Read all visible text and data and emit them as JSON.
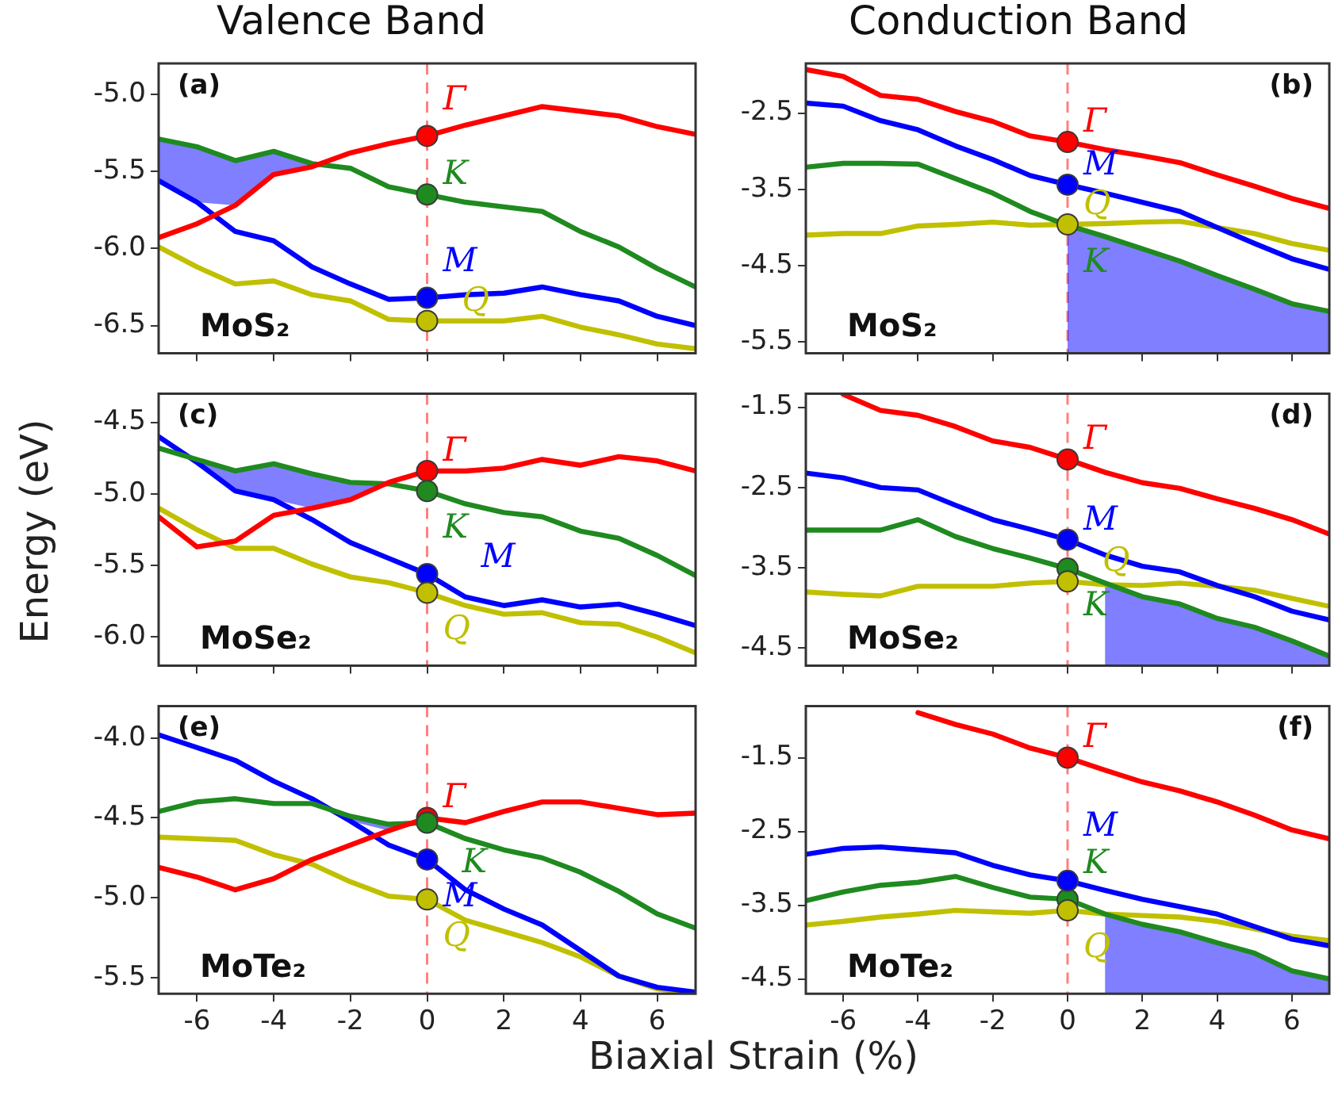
{
  "chart_data": [
    {
      "type": "line",
      "title": "Valence Band",
      "x": [
        -7,
        -6,
        -5,
        -4,
        -3,
        -2,
        -1,
        0,
        1,
        2,
        3,
        4,
        5,
        6,
        7
      ],
      "xlim": [
        -7,
        7
      ],
      "xticks": [
        -6,
        -4,
        -2,
        0,
        2,
        4,
        6
      ],
      "ylim": [
        -6.68,
        -4.8
      ],
      "yticks": [
        {
          "value": -5,
          "label": "-5.0"
        },
        -5.5,
        {
          "value": -6,
          "label": "-6.0"
        },
        -6.5
      ],
      "grid": false,
      "tick_labels": "y",
      "annotations": [
        "(a)",
        "MoS₂"
      ],
      "ref_lines": [
        {
          "axis": "x",
          "value": 0,
          "color": "#ff8080",
          "line_style": "dashed"
        }
      ],
      "series": [
        {
          "name": "Γ",
          "color": "#ff0000",
          "values": [
            -5.93,
            -5.84,
            -5.72,
            -5.52,
            -5.47,
            -5.38,
            -5.32,
            -5.27,
            -5.2,
            -5.14,
            -5.08,
            -5.11,
            -5.14,
            -5.21,
            -5.26
          ]
        },
        {
          "name": "K",
          "color": "#1f8a1f",
          "values": [
            -5.29,
            -5.34,
            -5.43,
            -5.37,
            -5.45,
            -5.48,
            -5.6,
            -5.65,
            -5.7,
            -5.73,
            -5.76,
            -5.89,
            -5.99,
            -6.13,
            -6.25
          ]
        },
        {
          "name": "M",
          "color": "#0000ff",
          "values": [
            -5.56,
            -5.7,
            -5.89,
            -5.95,
            -6.12,
            -6.23,
            -6.33,
            -6.32,
            -6.3,
            -6.29,
            -6.25,
            -6.3,
            -6.34,
            -6.44,
            -6.5
          ],
          "upper": [
            -5.29,
            -5.34,
            -5.43,
            -5.37,
            -5.45,
            null,
            null,
            null,
            null,
            null,
            null,
            null,
            null,
            null,
            null
          ],
          "lower": [
            -5.56,
            -5.7,
            -5.72,
            -5.52,
            -5.47,
            null,
            null,
            null,
            null,
            null,
            null,
            null,
            null,
            null,
            null
          ]
        },
        {
          "name": "Q",
          "color": "#c0c000",
          "values": [
            -5.99,
            -6.12,
            -6.23,
            -6.21,
            -6.3,
            -6.34,
            -6.46,
            -6.47,
            -6.47,
            -6.47,
            -6.44,
            -6.51,
            -6.56,
            -6.62,
            -6.65
          ]
        },
        {
          "type": "scatter",
          "marker": "circle",
          "color": "#ff0000",
          "values": [
            null,
            null,
            null,
            null,
            null,
            null,
            null,
            -5.27,
            null,
            null,
            null,
            null,
            null,
            null,
            null
          ]
        },
        {
          "type": "scatter",
          "marker": "circle",
          "color": "#1f8a1f",
          "values": [
            null,
            null,
            null,
            null,
            null,
            null,
            null,
            -5.65,
            null,
            null,
            null,
            null,
            null,
            null,
            null
          ]
        },
        {
          "type": "scatter",
          "marker": "circle",
          "color": "#0000ff",
          "values": [
            null,
            null,
            null,
            null,
            null,
            null,
            null,
            -6.32,
            null,
            null,
            null,
            null,
            null,
            null,
            null
          ]
        },
        {
          "type": "scatter",
          "marker": "circle",
          "color": "#c0c000",
          "values": [
            null,
            null,
            null,
            null,
            null,
            null,
            null,
            -6.47,
            null,
            null,
            null,
            null,
            null,
            null,
            null
          ]
        }
      ]
    },
    {
      "type": "line",
      "title": "Conduction Band",
      "x": [
        -7,
        -6,
        -5,
        -4,
        -3,
        -2,
        -1,
        0,
        1,
        2,
        3,
        4,
        5,
        6,
        7
      ],
      "xlim": [
        -7,
        7
      ],
      "xticks": [
        -6,
        -4,
        -2,
        0,
        2,
        4,
        6
      ],
      "ylim": [
        -5.65,
        -1.85
      ],
      "yticks": [
        -2.5,
        -3.5,
        -4.5,
        -5.5
      ],
      "grid": false,
      "tick_labels": "y",
      "annotations": [
        "(b)",
        "MoS₂"
      ],
      "ref_lines": [
        {
          "axis": "x",
          "value": 0,
          "color": "#ff8080",
          "line_style": "dashed"
        }
      ],
      "series": [
        {
          "name": "Γ",
          "color": "#ff0000",
          "values": [
            -1.93,
            -2.02,
            -2.27,
            -2.32,
            -2.48,
            -2.61,
            -2.8,
            -2.88,
            -2.98,
            -3.06,
            -3.15,
            -3.31,
            -3.46,
            -3.62,
            -3.75
          ]
        },
        {
          "name": "K",
          "color": "#1f8a1f",
          "values": [
            -3.21,
            -3.16,
            -3.16,
            -3.17,
            -3.36,
            -3.55,
            -3.79,
            -3.97,
            -4.12,
            -4.28,
            -4.44,
            -4.63,
            -4.81,
            -5.0,
            -5.1
          ]
        },
        {
          "name": "M",
          "color": "#0000ff",
          "values": [
            -2.37,
            -2.41,
            -2.6,
            -2.72,
            -2.93,
            -3.11,
            -3.32,
            -3.44,
            -3.55,
            -3.67,
            -3.79,
            -4.0,
            -4.21,
            -4.41,
            -4.55
          ],
          "upper": [
            null,
            null,
            null,
            null,
            null,
            null,
            null,
            -3.97,
            -4.12,
            -4.28,
            -4.44,
            -4.63,
            -4.81,
            -5.0,
            -5.1
          ],
          "lower": [
            null,
            null,
            null,
            null,
            null,
            null,
            null,
            -5.65,
            -5.65,
            -5.65,
            -5.65,
            -5.65,
            -5.65,
            -5.65,
            -5.65
          ]
        },
        {
          "name": "Q",
          "color": "#c0c000",
          "values": [
            -4.1,
            -4.08,
            -4.08,
            -3.98,
            -3.96,
            -3.93,
            -3.97,
            -3.96,
            -3.95,
            -3.93,
            -3.92,
            -4.0,
            -4.08,
            -4.21,
            -4.3
          ]
        },
        {
          "type": "scatter",
          "marker": "circle",
          "color": "#ff0000",
          "values": [
            null,
            null,
            null,
            null,
            null,
            null,
            null,
            -2.88,
            null,
            null,
            null,
            null,
            null,
            null,
            null
          ]
        },
        {
          "type": "scatter",
          "marker": "circle",
          "color": "#0000ff",
          "values": [
            null,
            null,
            null,
            null,
            null,
            null,
            null,
            -3.44,
            null,
            null,
            null,
            null,
            null,
            null,
            null
          ]
        },
        {
          "type": "scatter",
          "marker": "circle",
          "color": "#c0c000",
          "values": [
            null,
            null,
            null,
            null,
            null,
            null,
            null,
            -3.96,
            null,
            null,
            null,
            null,
            null,
            null,
            null
          ]
        }
      ]
    },
    {
      "type": "line",
      "ylabel": "Energy (eV)",
      "x": [
        -7,
        -6,
        -5,
        -4,
        -3,
        -2,
        -1,
        0,
        1,
        2,
        3,
        4,
        5,
        6,
        7
      ],
      "xlim": [
        -7,
        7
      ],
      "xticks": [
        -6,
        -4,
        -2,
        0,
        2,
        4,
        6
      ],
      "ylim": [
        -6.2,
        -4.3
      ],
      "yticks": [
        -4.5,
        {
          "value": -5,
          "label": "-5.0"
        },
        -5.5,
        {
          "value": -6,
          "label": "-6.0"
        }
      ],
      "grid": false,
      "tick_labels": "y",
      "annotations": [
        "(c)",
        "MoSe₂"
      ],
      "ref_lines": [
        {
          "axis": "x",
          "value": 0,
          "color": "#ff8080",
          "line_style": "dashed"
        }
      ],
      "series": [
        {
          "name": "Γ",
          "color": "#ff0000",
          "values": [
            -5.16,
            -5.37,
            -5.33,
            -5.15,
            -5.1,
            -5.04,
            -4.92,
            -4.84,
            -4.84,
            -4.82,
            -4.76,
            -4.8,
            -4.74,
            -4.77,
            -4.84
          ]
        },
        {
          "name": "K",
          "color": "#1f8a1f",
          "values": [
            -4.68,
            -4.76,
            -4.84,
            -4.79,
            -4.86,
            -4.92,
            -4.93,
            -4.98,
            -5.07,
            -5.13,
            -5.16,
            -5.26,
            -5.31,
            -5.43,
            -5.57
          ]
        },
        {
          "name": "M",
          "color": "#0000ff",
          "values": [
            -4.6,
            -4.78,
            -4.98,
            -5.04,
            -5.18,
            -5.34,
            -5.45,
            -5.56,
            -5.72,
            -5.78,
            -5.74,
            -5.79,
            -5.77,
            -5.84,
            -5.92
          ],
          "upper": [
            null,
            -4.76,
            -4.84,
            -4.79,
            -4.86,
            -4.92,
            -4.93,
            null,
            null,
            null,
            null,
            null,
            null,
            null,
            null
          ],
          "lower": [
            null,
            -4.78,
            -4.98,
            -5.04,
            -5.1,
            -5.04,
            -4.93,
            null,
            null,
            null,
            null,
            null,
            null,
            null,
            null
          ]
        },
        {
          "name": "Q",
          "color": "#c0c000",
          "values": [
            -5.1,
            -5.25,
            -5.38,
            -5.38,
            -5.49,
            -5.58,
            -5.62,
            -5.69,
            -5.78,
            -5.84,
            -5.83,
            -5.9,
            -5.91,
            -6.0,
            -6.11
          ]
        },
        {
          "type": "scatter",
          "marker": "circle",
          "color": "#ff0000",
          "values": [
            null,
            null,
            null,
            null,
            null,
            null,
            null,
            -4.84,
            null,
            null,
            null,
            null,
            null,
            null,
            null
          ]
        },
        {
          "type": "scatter",
          "marker": "circle",
          "color": "#1f8a1f",
          "values": [
            null,
            null,
            null,
            null,
            null,
            null,
            null,
            -4.98,
            null,
            null,
            null,
            null,
            null,
            null,
            null
          ]
        },
        {
          "type": "scatter",
          "marker": "circle",
          "color": "#0000ff",
          "values": [
            null,
            null,
            null,
            null,
            null,
            null,
            null,
            -5.56,
            null,
            null,
            null,
            null,
            null,
            null,
            null
          ]
        },
        {
          "type": "scatter",
          "marker": "circle",
          "color": "#c0c000",
          "values": [
            null,
            null,
            null,
            null,
            null,
            null,
            null,
            -5.69,
            null,
            null,
            null,
            null,
            null,
            null,
            null
          ]
        }
      ]
    },
    {
      "type": "line",
      "x": [
        -7,
        -6,
        -5,
        -4,
        -3,
        -2,
        -1,
        0,
        1,
        2,
        3,
        4,
        5,
        6,
        7
      ],
      "xlim": [
        -7,
        7
      ],
      "xticks": [
        -6,
        -4,
        -2,
        0,
        2,
        4,
        6
      ],
      "ylim": [
        -4.72,
        -1.33
      ],
      "yticks": [
        -1.5,
        -2.5,
        -3.5,
        -4.5
      ],
      "grid": false,
      "tick_labels": "y",
      "annotations": [
        "(d)",
        "MoSe₂"
      ],
      "ref_lines": [
        {
          "axis": "x",
          "value": 0,
          "color": "#ff8080",
          "line_style": "dashed"
        }
      ],
      "series": [
        {
          "name": "Γ",
          "color": "#ff0000",
          "values": [
            null,
            -1.34,
            -1.54,
            -1.6,
            -1.74,
            -1.92,
            -2.0,
            -2.15,
            -2.31,
            -2.44,
            -2.51,
            -2.64,
            -2.76,
            -2.9,
            -3.08
          ]
        },
        {
          "name": "K",
          "color": "#1f8a1f",
          "values": [
            -3.03,
            -3.03,
            -3.03,
            -2.9,
            -3.11,
            -3.26,
            -3.38,
            -3.51,
            -3.69,
            -3.86,
            -3.95,
            -4.13,
            -4.24,
            -4.41,
            -4.6
          ]
        },
        {
          "name": "M",
          "color": "#0000ff",
          "values": [
            -2.32,
            -2.38,
            -2.5,
            -2.53,
            -2.72,
            -2.9,
            -3.02,
            -3.15,
            -3.34,
            -3.48,
            -3.55,
            -3.72,
            -3.86,
            -4.04,
            -4.15
          ],
          "upper": [
            null,
            null,
            null,
            null,
            null,
            null,
            null,
            null,
            -3.69,
            -3.86,
            -3.95,
            -4.13,
            -4.24,
            -4.41,
            -4.6
          ],
          "lower": [
            null,
            null,
            null,
            null,
            null,
            null,
            null,
            null,
            -4.72,
            -4.72,
            -4.72,
            -4.72,
            -4.72,
            -4.72,
            -4.72
          ]
        },
        {
          "name": "Q",
          "color": "#c0c000",
          "values": [
            -3.8,
            -3.83,
            -3.85,
            -3.73,
            -3.73,
            -3.73,
            -3.69,
            -3.67,
            -3.71,
            -3.72,
            -3.69,
            -3.73,
            -3.78,
            -3.88,
            -3.98
          ]
        },
        {
          "type": "scatter",
          "marker": "circle",
          "color": "#ff0000",
          "values": [
            null,
            null,
            null,
            null,
            null,
            null,
            null,
            -2.15,
            null,
            null,
            null,
            null,
            null,
            null,
            null
          ]
        },
        {
          "type": "scatter",
          "marker": "circle",
          "color": "#1f8a1f",
          "values": [
            null,
            null,
            null,
            null,
            null,
            null,
            null,
            -3.51,
            null,
            null,
            null,
            null,
            null,
            null,
            null
          ]
        },
        {
          "type": "scatter",
          "marker": "circle",
          "color": "#0000ff",
          "values": [
            null,
            null,
            null,
            null,
            null,
            null,
            null,
            -3.15,
            null,
            null,
            null,
            null,
            null,
            null,
            null
          ]
        },
        {
          "type": "scatter",
          "marker": "circle",
          "color": "#c0c000",
          "values": [
            null,
            null,
            null,
            null,
            null,
            null,
            null,
            -3.67,
            null,
            null,
            null,
            null,
            null,
            null,
            null
          ]
        }
      ]
    },
    {
      "type": "line",
      "xlabel": "Biaxial Strain (%)",
      "x": [
        -7,
        -6,
        -5,
        -4,
        -3,
        -2,
        -1,
        0,
        1,
        2,
        3,
        4,
        5,
        6,
        7
      ],
      "xlim": [
        -7,
        7
      ],
      "xticks": [
        -6,
        -4,
        -2,
        0,
        2,
        4,
        6
      ],
      "ylim": [
        -5.6,
        -3.8
      ],
      "yticks": [
        {
          "value": -4,
          "label": "-4.0"
        },
        -4.5,
        {
          "value": -5,
          "label": "-5.0"
        },
        -5.5
      ],
      "grid": false,
      "annotations": [
        "(e)",
        "MoTe₂"
      ],
      "ref_lines": [
        {
          "axis": "x",
          "value": 0,
          "color": "#ff8080",
          "line_style": "dashed"
        }
      ],
      "series": [
        {
          "name": "Γ",
          "color": "#ff0000",
          "values": [
            -4.81,
            -4.87,
            -4.95,
            -4.88,
            -4.76,
            -4.67,
            -4.58,
            -4.5,
            -4.53,
            -4.46,
            -4.4,
            -4.4,
            -4.44,
            -4.48,
            -4.47
          ]
        },
        {
          "name": "K",
          "color": "#1f8a1f",
          "values": [
            -4.46,
            -4.4,
            -4.38,
            -4.41,
            -4.41,
            -4.49,
            -4.54,
            -4.53,
            -4.63,
            -4.7,
            -4.75,
            -4.84,
            -4.96,
            -5.1,
            -5.19
          ]
        },
        {
          "name": "M",
          "color": "#0000ff",
          "values": [
            -3.98,
            -4.06,
            -4.14,
            -4.27,
            -4.38,
            -4.52,
            -4.67,
            -4.76,
            -4.95,
            -5.07,
            -5.17,
            -5.33,
            -5.49,
            -5.56,
            -5.59
          ],
          "upper": [
            null,
            null,
            null,
            null,
            -4.41,
            -4.49,
            -4.54,
            -4.53,
            null,
            null,
            null,
            null,
            null,
            null,
            null
          ],
          "lower": [
            null,
            null,
            null,
            null,
            -4.41,
            -4.52,
            -4.58,
            -4.53,
            null,
            null,
            null,
            null,
            null,
            null,
            null
          ]
        },
        {
          "name": "Q",
          "color": "#c0c000",
          "values": [
            -4.62,
            -4.63,
            -4.64,
            -4.73,
            -4.79,
            -4.9,
            -4.99,
            -5.01,
            -5.14,
            -5.21,
            -5.28,
            -5.37,
            -5.49,
            -5.57,
            -5.6
          ]
        },
        {
          "type": "scatter",
          "marker": "circle",
          "color": "#ff0000",
          "values": [
            null,
            null,
            null,
            null,
            null,
            null,
            null,
            -4.5,
            null,
            null,
            null,
            null,
            null,
            null,
            null
          ]
        },
        {
          "type": "scatter",
          "marker": "circle",
          "color": "#1f8a1f",
          "values": [
            null,
            null,
            null,
            null,
            null,
            null,
            null,
            -4.53,
            null,
            null,
            null,
            null,
            null,
            null,
            null
          ]
        },
        {
          "type": "scatter",
          "marker": "circle",
          "color": "#0000ff",
          "values": [
            null,
            null,
            null,
            null,
            null,
            null,
            null,
            -4.76,
            null,
            null,
            null,
            null,
            null,
            null,
            null
          ]
        },
        {
          "type": "scatter",
          "marker": "circle",
          "color": "#c0c000",
          "values": [
            null,
            null,
            null,
            null,
            null,
            null,
            null,
            -5.01,
            null,
            null,
            null,
            null,
            null,
            null,
            null
          ]
        }
      ]
    },
    {
      "type": "line",
      "x": [
        -7,
        -6,
        -5,
        -4,
        -3,
        -2,
        -1,
        0,
        1,
        2,
        3,
        4,
        5,
        6,
        7
      ],
      "xlim": [
        -7,
        7
      ],
      "xticks": [
        -6,
        -4,
        -2,
        0,
        2,
        4,
        6
      ],
      "ylim": [
        -4.7,
        -0.8
      ],
      "yticks": [
        -1.5,
        -2.5,
        -3.5,
        -4.5
      ],
      "grid": false,
      "annotations": [
        "(f)",
        "MoTe₂"
      ],
      "ref_lines": [
        {
          "axis": "x",
          "value": 0,
          "color": "#ff8080",
          "line_style": "dashed"
        }
      ],
      "series": [
        {
          "name": "Γ",
          "color": "#ff0000",
          "values": [
            null,
            null,
            null,
            -0.89,
            -1.05,
            -1.18,
            -1.37,
            -1.5,
            -1.67,
            -1.83,
            -1.95,
            -2.1,
            -2.28,
            -2.48,
            -2.6
          ]
        },
        {
          "name": "K",
          "color": "#1f8a1f",
          "values": [
            -3.44,
            -3.32,
            -3.23,
            -3.19,
            -3.11,
            -3.26,
            -3.39,
            -3.42,
            -3.62,
            -3.76,
            -3.86,
            -4.01,
            -4.15,
            -4.39,
            -4.5
          ]
        },
        {
          "name": "M",
          "color": "#0000ff",
          "values": [
            -2.81,
            -2.73,
            -2.71,
            -2.75,
            -2.79,
            -2.96,
            -3.09,
            -3.17,
            -3.3,
            -3.42,
            -3.52,
            -3.62,
            -3.79,
            -3.96,
            -4.05
          ],
          "upper": [
            null,
            null,
            null,
            null,
            null,
            null,
            null,
            null,
            -3.62,
            -3.76,
            -3.86,
            -4.01,
            -4.15,
            -4.39,
            -4.5
          ],
          "lower": [
            null,
            null,
            null,
            null,
            null,
            null,
            null,
            null,
            -4.7,
            -4.7,
            -4.7,
            -4.7,
            -4.7,
            -4.7,
            -4.7
          ]
        },
        {
          "name": "Q",
          "color": "#c0c000",
          "values": [
            -3.77,
            -3.72,
            -3.66,
            -3.62,
            -3.57,
            -3.59,
            -3.61,
            -3.57,
            -3.62,
            -3.64,
            -3.66,
            -3.72,
            -3.82,
            -3.92,
            -3.98
          ]
        },
        {
          "type": "scatter",
          "marker": "circle",
          "color": "#ff0000",
          "values": [
            null,
            null,
            null,
            null,
            null,
            null,
            null,
            -1.5,
            null,
            null,
            null,
            null,
            null,
            null,
            null
          ]
        },
        {
          "type": "scatter",
          "marker": "circle",
          "color": "#1f8a1f",
          "values": [
            null,
            null,
            null,
            null,
            null,
            null,
            null,
            -3.42,
            null,
            null,
            null,
            null,
            null,
            null,
            null
          ]
        },
        {
          "type": "scatter",
          "marker": "circle",
          "color": "#0000ff",
          "values": [
            null,
            null,
            null,
            null,
            null,
            null,
            null,
            -3.17,
            null,
            null,
            null,
            null,
            null,
            null,
            null
          ]
        },
        {
          "type": "scatter",
          "marker": "circle",
          "color": "#c0c000",
          "values": [
            null,
            null,
            null,
            null,
            null,
            null,
            null,
            -3.57,
            null,
            null,
            null,
            null,
            null,
            null,
            null
          ]
        }
      ]
    }
  ]
}
